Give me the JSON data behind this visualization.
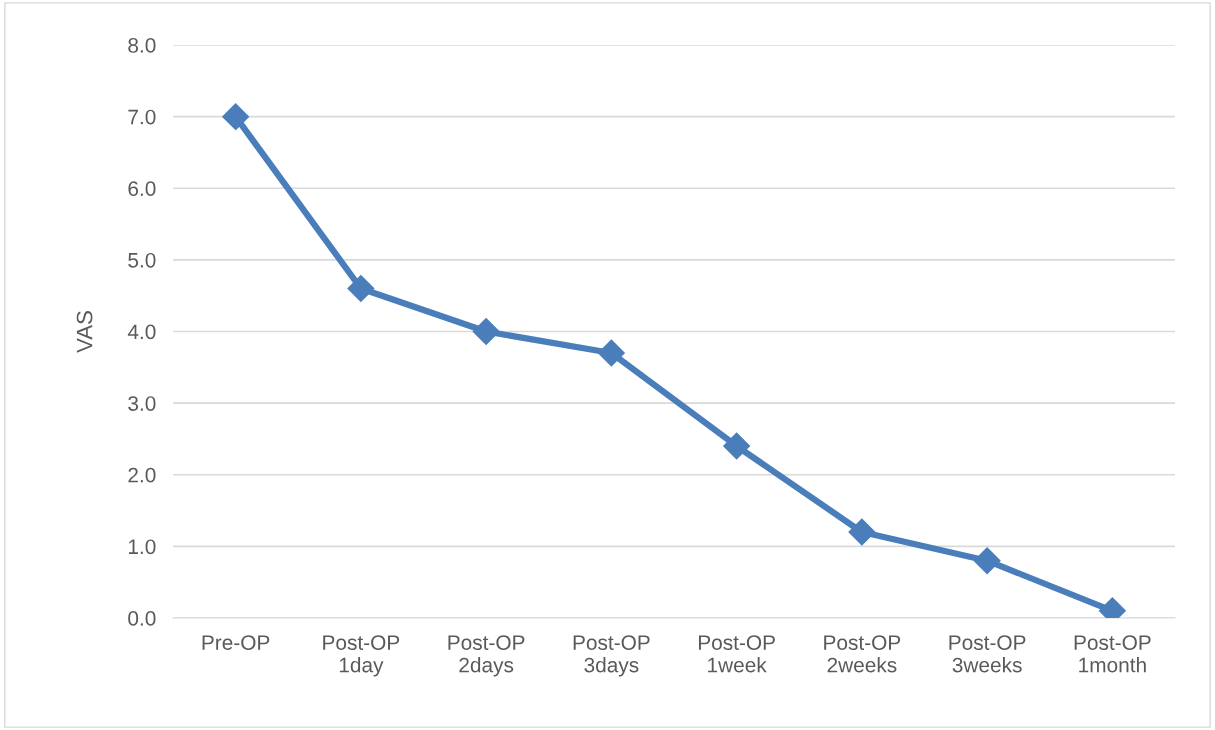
{
  "chart_data": {
    "type": "line",
    "ylabel": "VAS",
    "categories": [
      "Pre-OP",
      "Post-OP\n1day",
      "Post-OP\n2days",
      "Post-OP\n3days",
      "Post-OP\n1week",
      "Post-OP\n2weeks",
      "Post-OP\n3weeks",
      "Post-OP\n1month"
    ],
    "series": [
      {
        "color": "#4a7ebb",
        "values": [
          7.0,
          4.6,
          4.0,
          3.7,
          2.4,
          1.2,
          0.8,
          0.1
        ]
      }
    ],
    "ylim": [
      0,
      8
    ],
    "yticks": [
      {
        "value": 0,
        "label": "0.0"
      },
      {
        "value": 1,
        "label": "1.0"
      },
      {
        "value": 2,
        "label": "2.0"
      },
      {
        "value": 3,
        "label": "3.0"
      },
      {
        "value": 4,
        "label": "4.0"
      },
      {
        "value": 5,
        "label": "5.0"
      },
      {
        "value": 6,
        "label": "6.0"
      },
      {
        "value": 7,
        "label": "7.0"
      },
      {
        "value": 8,
        "label": "8.0"
      }
    ],
    "grid": "y",
    "marker": "diamond",
    "line_style": "solid"
  }
}
